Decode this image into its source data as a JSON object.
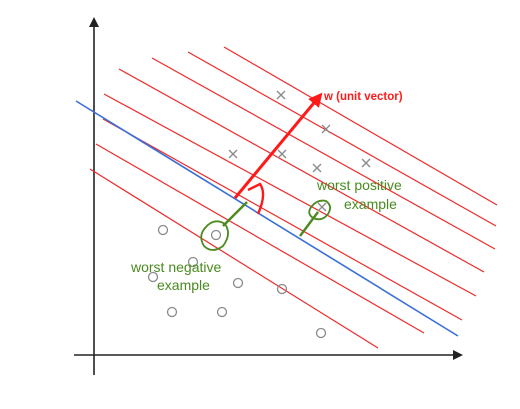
{
  "labels": {
    "w_vector": "w (unit vector)",
    "worst_positive_line1": "worst positive",
    "worst_positive_line2": "example",
    "worst_negative_line1": "worst negative",
    "worst_negative_line2": "example"
  },
  "colors": {
    "axis": "#222222",
    "boundary": "#3a6fd8",
    "margin_lines": "#ee2a2a",
    "w_vector": "#ff1a1a",
    "annotation": "#4a8a1f",
    "points": "#8a8a8a"
  },
  "points": {
    "positive_marker": "x",
    "negative_marker": "o"
  }
}
